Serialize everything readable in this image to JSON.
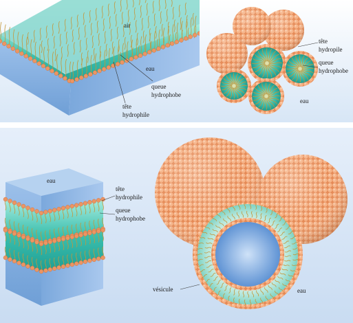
{
  "figure": {
    "top_left": {
      "air": "air",
      "water": "eau",
      "hydrophobic_tail_line1": "queue",
      "hydrophobic_tail_line2": "hydrophobe",
      "hydrophilic_head_line1": "tête",
      "hydrophilic_head_line2": "hydrophile"
    },
    "top_right": {
      "hydrophilic_head_line1": "tête",
      "hydrophilic_head_line2": "hydropile",
      "hydrophobic_tail_line1": "queue",
      "hydrophobic_tail_line2": "hydrophobe",
      "water": "eau"
    },
    "bottom_left": {
      "water": "eau",
      "hydrophilic_head_line1": "tête",
      "hydrophilic_head_line2": "hydrophile",
      "hydrophobic_tail_line1": "queue",
      "hydrophobic_tail_line2": "hydrophobe"
    },
    "bottom_right": {
      "vesicle": "vésicule",
      "water": "eau"
    }
  },
  "colors": {
    "panel_background": "#dbe8f7",
    "water_blue": "#8db4e2",
    "teal": "#3cc2b0",
    "head_orange": "#e99461",
    "tail_gold": "#c79a3a"
  }
}
